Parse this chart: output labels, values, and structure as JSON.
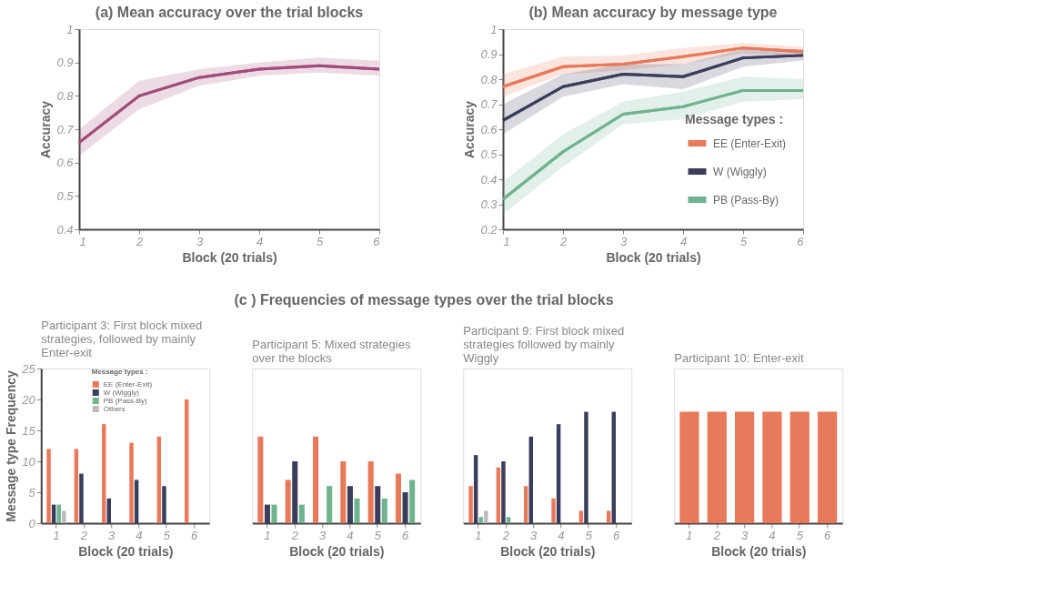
{
  "chart_data": [
    {
      "type": "line",
      "title": "(a)  Mean accuracy over the trial blocks",
      "xlabel": "Block (20 trials)",
      "ylabel": "Accuracy",
      "x": [
        1,
        2,
        3,
        4,
        5,
        6
      ],
      "xlim": [
        1,
        6
      ],
      "xticks": [
        1,
        2,
        3,
        4,
        5,
        6
      ],
      "ylim": [
        0.4,
        1
      ],
      "yticks": [
        0.4,
        0.5,
        0.6,
        0.7,
        0.8,
        0.9,
        1
      ],
      "grid": false,
      "series": [
        {
          "color": "#a24d78",
          "values": [
            0.66,
            0.8,
            0.855,
            0.88,
            0.89,
            0.88
          ],
          "lower": [
            0.62,
            0.76,
            0.83,
            0.86,
            0.87,
            0.86
          ],
          "upper": [
            0.7,
            0.845,
            0.88,
            0.9,
            0.915,
            0.905
          ]
        }
      ]
    },
    {
      "type": "line",
      "title": "(b)  Mean accuracy by message type",
      "xlabel": "Block (20 trials)",
      "ylabel": "Accuracy",
      "legend_title": "Message types :",
      "legend": "bottom right",
      "x": [
        1,
        2,
        3,
        4,
        5,
        6
      ],
      "xlim": [
        1,
        6
      ],
      "xticks": [
        1,
        2,
        3,
        4,
        5,
        6
      ],
      "ylim": [
        0.2,
        1
      ],
      "yticks": [
        0.2,
        0.3,
        0.4,
        0.5,
        0.6,
        0.7,
        0.8,
        0.9,
        1
      ],
      "grid": false,
      "series": [
        {
          "name": "EE (Enter-Exit)",
          "color": "#e8795a",
          "values": [
            0.77,
            0.85,
            0.86,
            0.89,
            0.925,
            0.91
          ],
          "lower": [
            0.73,
            0.82,
            0.835,
            0.86,
            0.905,
            0.89
          ],
          "upper": [
            0.82,
            0.89,
            0.895,
            0.925,
            0.945,
            0.93
          ]
        },
        {
          "name": "W (Wiggly)",
          "color": "#3b3d5c",
          "values": [
            0.635,
            0.77,
            0.82,
            0.81,
            0.885,
            0.895
          ],
          "lower": [
            0.58,
            0.73,
            0.78,
            0.76,
            0.85,
            0.875
          ],
          "upper": [
            0.7,
            0.82,
            0.86,
            0.86,
            0.92,
            0.92
          ]
        },
        {
          "name": "PB (Pass-By)",
          "color": "#6fb38f",
          "values": [
            0.32,
            0.51,
            0.66,
            0.69,
            0.755,
            0.755
          ],
          "lower": [
            0.26,
            0.45,
            0.62,
            0.64,
            0.71,
            0.72
          ],
          "upper": [
            0.39,
            0.58,
            0.71,
            0.75,
            0.81,
            0.8
          ]
        }
      ]
    },
    {
      "type": "bar",
      "title": "Participant 3: First block mixed strategies, followed by mainly Enter-exit",
      "xlabel": "Block (20 trials)",
      "ylabel": "Message type Frequency",
      "legend_title": "Message types :",
      "legend": "top",
      "annotations": [
        "(c ) Frequencies of message types over the trial blocks"
      ],
      "categories": [
        "1",
        "2",
        "3",
        "4",
        "5",
        "6"
      ],
      "ylim": [
        0,
        25
      ],
      "yticks": [
        0,
        5,
        10,
        15,
        20,
        25
      ],
      "grid": false,
      "series": [
        {
          "name": "EE (Enter-Exit)",
          "color": "#e8795a",
          "values": [
            12,
            12,
            16,
            13,
            14,
            20
          ]
        },
        {
          "name": "W (Wiggly)",
          "color": "#3b3d5c",
          "values": [
            3,
            8,
            4,
            7,
            6,
            0
          ]
        },
        {
          "name": "PB (Pass-By)",
          "color": "#6fb38f",
          "values": [
            3,
            0,
            0,
            0,
            0,
            0
          ]
        },
        {
          "name": "Others",
          "color": "#bbbbbb",
          "values": [
            2,
            0,
            0,
            0,
            0,
            0
          ]
        }
      ]
    },
    {
      "type": "bar",
      "title": "Participant 5: Mixed strategies over the blocks",
      "xlabel": "Block (20 trials)",
      "categories": [
        "1",
        "2",
        "3",
        "4",
        "5",
        "6"
      ],
      "ylim": [
        0,
        25
      ],
      "tick_labels": "x",
      "grid": false,
      "series": [
        {
          "color": "#e8795a",
          "values": [
            14,
            7,
            14,
            10,
            10,
            8
          ]
        },
        {
          "color": "#3b3d5c",
          "values": [
            3,
            10,
            0,
            6,
            6,
            5
          ]
        },
        {
          "color": "#6fb38f",
          "values": [
            3,
            3,
            6,
            4,
            4,
            7
          ]
        }
      ]
    },
    {
      "type": "bar",
      "title": "Participant 9: First block mixed strategies followed by mainly Wiggly",
      "xlabel": "Block (20 trials)",
      "categories": [
        "1",
        "2",
        "3",
        "4",
        "5",
        "6"
      ],
      "ylim": [
        0,
        25
      ],
      "tick_labels": "x",
      "grid": false,
      "series": [
        {
          "color": "#e8795a",
          "values": [
            6,
            9,
            6,
            4,
            2,
            2
          ]
        },
        {
          "color": "#3b3d5c",
          "values": [
            11,
            10,
            14,
            16,
            18,
            18
          ]
        },
        {
          "color": "#6fb38f",
          "values": [
            1,
            1,
            0,
            0,
            0,
            0
          ]
        },
        {
          "color": "#bbbbbb",
          "values": [
            2,
            0,
            0,
            0,
            0,
            0
          ]
        }
      ]
    },
    {
      "type": "bar",
      "title": "Participant 10: Enter-exit",
      "xlabel": "Block (20 trials)",
      "categories": [
        "1",
        "2",
        "3",
        "4",
        "5",
        "6"
      ],
      "ylim": [
        0,
        25
      ],
      "tick_labels": "x",
      "grid": false,
      "series": [
        {
          "color": "#e8795a",
          "values": [
            18,
            18,
            18,
            18,
            18,
            18
          ]
        }
      ]
    }
  ]
}
